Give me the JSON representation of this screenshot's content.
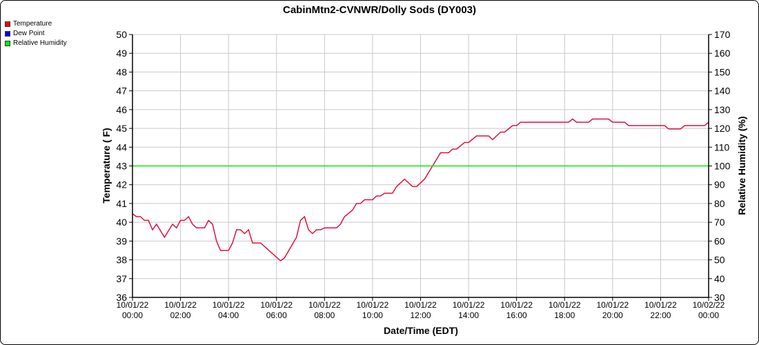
{
  "chart_data": {
    "type": "line",
    "title": "CabinMtn2-CVNWR/Dolly Sods (DY003)",
    "xlabel": "Date/Time (EDT)",
    "ylabel": "Temperature ( F)",
    "y2label": "Relative Humidity (%)",
    "ylim": [
      36,
      50
    ],
    "y2lim": [
      30,
      170
    ],
    "xlim_minutes": [
      0,
      1440
    ],
    "grid": true,
    "legend_position": "top-left",
    "legend": [
      {
        "name": "Temperature",
        "color": "#ff0000"
      },
      {
        "name": "Dew Point",
        "color": "#0000ff"
      },
      {
        "name": "Relative Humidity",
        "color": "#00ff00"
      }
    ],
    "y_ticks": [
      36,
      37,
      38,
      39,
      40,
      41,
      42,
      43,
      44,
      45,
      46,
      47,
      48,
      49,
      50
    ],
    "y2_ticks": [
      30,
      40,
      50,
      60,
      70,
      80,
      90,
      100,
      110,
      120,
      130,
      140,
      150,
      160,
      170
    ],
    "x_ticks": [
      {
        "minutes": 0,
        "date": "10/01/22",
        "time": "00:00"
      },
      {
        "minutes": 120,
        "date": "10/01/22",
        "time": "02:00"
      },
      {
        "minutes": 240,
        "date": "10/01/22",
        "time": "04:00"
      },
      {
        "minutes": 360,
        "date": "10/01/22",
        "time": "06:00"
      },
      {
        "minutes": 480,
        "date": "10/01/22",
        "time": "08:00"
      },
      {
        "minutes": 600,
        "date": "10/01/22",
        "time": "10:00"
      },
      {
        "minutes": 720,
        "date": "10/01/22",
        "time": "12:00"
      },
      {
        "minutes": 840,
        "date": "10/01/22",
        "time": "14:00"
      },
      {
        "minutes": 960,
        "date": "10/01/22",
        "time": "16:00"
      },
      {
        "minutes": 1080,
        "date": "10/01/22",
        "time": "18:00"
      },
      {
        "minutes": 1200,
        "date": "10/01/22",
        "time": "20:00"
      },
      {
        "minutes": 1320,
        "date": "10/01/22",
        "time": "22:00"
      },
      {
        "minutes": 1440,
        "date": "10/02/22",
        "time": "00:00"
      }
    ],
    "series": [
      {
        "name": "Temperature",
        "axis": "left",
        "color": "#e0103c",
        "points": [
          [
            0,
            40.45
          ],
          [
            10,
            40.3
          ],
          [
            20,
            40.3
          ],
          [
            30,
            40.1
          ],
          [
            40,
            40.1
          ],
          [
            50,
            39.6
          ],
          [
            60,
            39.9
          ],
          [
            80,
            39.2
          ],
          [
            100,
            39.9
          ],
          [
            110,
            39.7
          ],
          [
            120,
            40.1
          ],
          [
            130,
            40.1
          ],
          [
            140,
            40.3
          ],
          [
            150,
            39.9
          ],
          [
            160,
            39.7
          ],
          [
            180,
            39.7
          ],
          [
            190,
            40.1
          ],
          [
            200,
            39.9
          ],
          [
            210,
            39.0
          ],
          [
            220,
            38.5
          ],
          [
            240,
            38.5
          ],
          [
            250,
            38.9
          ],
          [
            260,
            39.6
          ],
          [
            270,
            39.6
          ],
          [
            280,
            39.4
          ],
          [
            290,
            39.6
          ],
          [
            300,
            38.9
          ],
          [
            320,
            38.9
          ],
          [
            370,
            37.95
          ],
          [
            380,
            38.1
          ],
          [
            410,
            39.2
          ],
          [
            420,
            40.1
          ],
          [
            430,
            40.3
          ],
          [
            440,
            39.6
          ],
          [
            450,
            39.4
          ],
          [
            460,
            39.6
          ],
          [
            470,
            39.6
          ],
          [
            480,
            39.7
          ],
          [
            510,
            39.7
          ],
          [
            520,
            39.9
          ],
          [
            530,
            40.3
          ],
          [
            550,
            40.65
          ],
          [
            560,
            41.0
          ],
          [
            570,
            41.0
          ],
          [
            580,
            41.2
          ],
          [
            600,
            41.2
          ],
          [
            610,
            41.4
          ],
          [
            620,
            41.4
          ],
          [
            630,
            41.55
          ],
          [
            650,
            41.55
          ],
          [
            660,
            41.9
          ],
          [
            680,
            42.3
          ],
          [
            700,
            41.9
          ],
          [
            710,
            41.9
          ],
          [
            730,
            42.3
          ],
          [
            770,
            43.7
          ],
          [
            790,
            43.7
          ],
          [
            800,
            43.9
          ],
          [
            810,
            43.9
          ],
          [
            830,
            44.25
          ],
          [
            840,
            44.25
          ],
          [
            860,
            44.6
          ],
          [
            890,
            44.6
          ],
          [
            900,
            44.4
          ],
          [
            920,
            44.8
          ],
          [
            930,
            44.8
          ],
          [
            950,
            45.15
          ],
          [
            960,
            45.15
          ],
          [
            970,
            45.33
          ],
          [
            1090,
            45.33
          ],
          [
            1100,
            45.5
          ],
          [
            1110,
            45.33
          ],
          [
            1140,
            45.33
          ],
          [
            1150,
            45.5
          ],
          [
            1190,
            45.5
          ],
          [
            1200,
            45.33
          ],
          [
            1230,
            45.33
          ],
          [
            1240,
            45.15
          ],
          [
            1330,
            45.15
          ],
          [
            1340,
            44.97
          ],
          [
            1370,
            44.97
          ],
          [
            1380,
            45.15
          ],
          [
            1430,
            45.15
          ],
          [
            1440,
            45.33
          ]
        ]
      },
      {
        "name": "Relative Humidity",
        "axis": "right",
        "color": "#00ee00",
        "points": [
          [
            0,
            100
          ],
          [
            1440,
            100
          ]
        ]
      }
    ]
  }
}
